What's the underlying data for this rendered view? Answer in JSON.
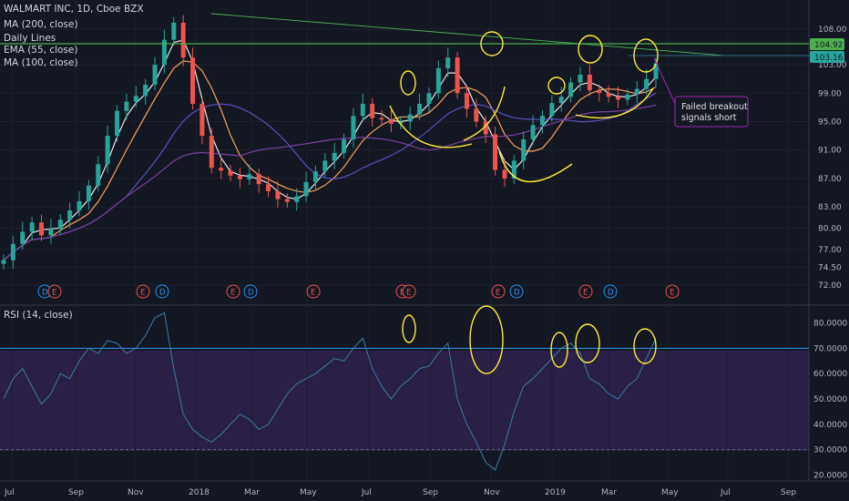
{
  "header": {
    "title": "WALMART INC, 1D, Cboe BZX",
    "indicators": [
      "MA (200, close)",
      "Daily Lines",
      "EMA (55, close)",
      "MA (100, close)"
    ]
  },
  "annotation": {
    "line1": "Failed breakout",
    "line2": "signals short"
  },
  "rsi_panel": {
    "title": "RSI (14, close)"
  },
  "price_badges": {
    "upper": "104.92",
    "lower": "103.16"
  },
  "price_axis": [
    "108.00",
    "103.00",
    "99.00",
    "95.00",
    "91.00",
    "87.00",
    "83.00",
    "80.00",
    "77.00",
    "74.50",
    "72.00"
  ],
  "rsi_axis": [
    "80.0000",
    "70.0000",
    "60.0000",
    "50.0000",
    "40.0000",
    "30.0000",
    "20.0000"
  ],
  "date_axis": [
    "Jul",
    "Sep",
    "Nov",
    "2018",
    "Mar",
    "May",
    "Jul",
    "Sep",
    "Nov",
    "2019",
    "Mar",
    "May",
    "Jul",
    "Sep"
  ],
  "event_markers": [
    "D",
    "E",
    "E",
    "D",
    "E",
    "D",
    "E",
    "E",
    "E",
    "E",
    "D",
    "E",
    "D",
    "E"
  ],
  "colors": {
    "background": "#131722",
    "up": "#26a69a",
    "down": "#ef5350",
    "ma200": "#7b3fa0",
    "ema55": "#f7a35c",
    "ma100": "#5b4fbf",
    "fast": "#e8e8e8",
    "resistance": "#4caf50",
    "annot": "#ffeb3b",
    "rsi_line": "#3b7fa6",
    "rsi_fill": "#2a1f45",
    "rsi_level": "#2196f3",
    "callout": "#9c27b0"
  },
  "chart_data": [
    {
      "type": "candlestick",
      "title": "WALMART INC, 1D, Cboe BZX",
      "x_range": [
        "2017-07",
        "2019-09"
      ],
      "ylim": [
        71,
        110
      ],
      "series": [
        {
          "name": "MA (200, close)"
        },
        {
          "name": "EMA (55, close)"
        },
        {
          "name": "MA (100, close)"
        }
      ],
      "closes": [
        75.5,
        77.8,
        79.5,
        80.8,
        79.0,
        79.9,
        81.2,
        82.5,
        83.8,
        86.0,
        89.0,
        93.0,
        96.5,
        97.8,
        98.6,
        100.2,
        103.0,
        106.5,
        108.9,
        104.0,
        97.5,
        93.0,
        88.5,
        88.1,
        87.4,
        86.9,
        87.6,
        86.2,
        85.2,
        84.1,
        83.7,
        84.5,
        86.5,
        88.0,
        89.5,
        90.6,
        92.5,
        95.8,
        97.5,
        95.5,
        95.3,
        94.7,
        95.0,
        96.0,
        97.5,
        99.0,
        102.5,
        104.0,
        99.0,
        96.8,
        95.0,
        93.2,
        88.2,
        87.0,
        89.5,
        92.5,
        94.5,
        95.8,
        97.6,
        98.5,
        100.5,
        101.6,
        99.4,
        99.0,
        98.5,
        98.1,
        98.8,
        99.6,
        101.0,
        103.2
      ],
      "key_levels": {
        "resistance": 104.92,
        "last": 103.16
      }
    },
    {
      "type": "line",
      "title": "RSI (14, close)",
      "ylim": [
        18,
        86
      ],
      "levels": [
        70,
        30
      ],
      "values": [
        50,
        58,
        62,
        55,
        48,
        52,
        60,
        58,
        65,
        70,
        68,
        73,
        72,
        68,
        70,
        75,
        82,
        84,
        62,
        44,
        38,
        35,
        33,
        36,
        40,
        44,
        42,
        38,
        40,
        46,
        52,
        56,
        58,
        60,
        63,
        66,
        65,
        70,
        74,
        62,
        55,
        50,
        55,
        58,
        62,
        63,
        68,
        72,
        50,
        40,
        33,
        25,
        22,
        32,
        45,
        55,
        58,
        62,
        66,
        70,
        72,
        68,
        58,
        56,
        52,
        50,
        55,
        58,
        66,
        74
      ],
      "x_range": [
        "2017-07",
        "2019-05"
      ]
    }
  ]
}
